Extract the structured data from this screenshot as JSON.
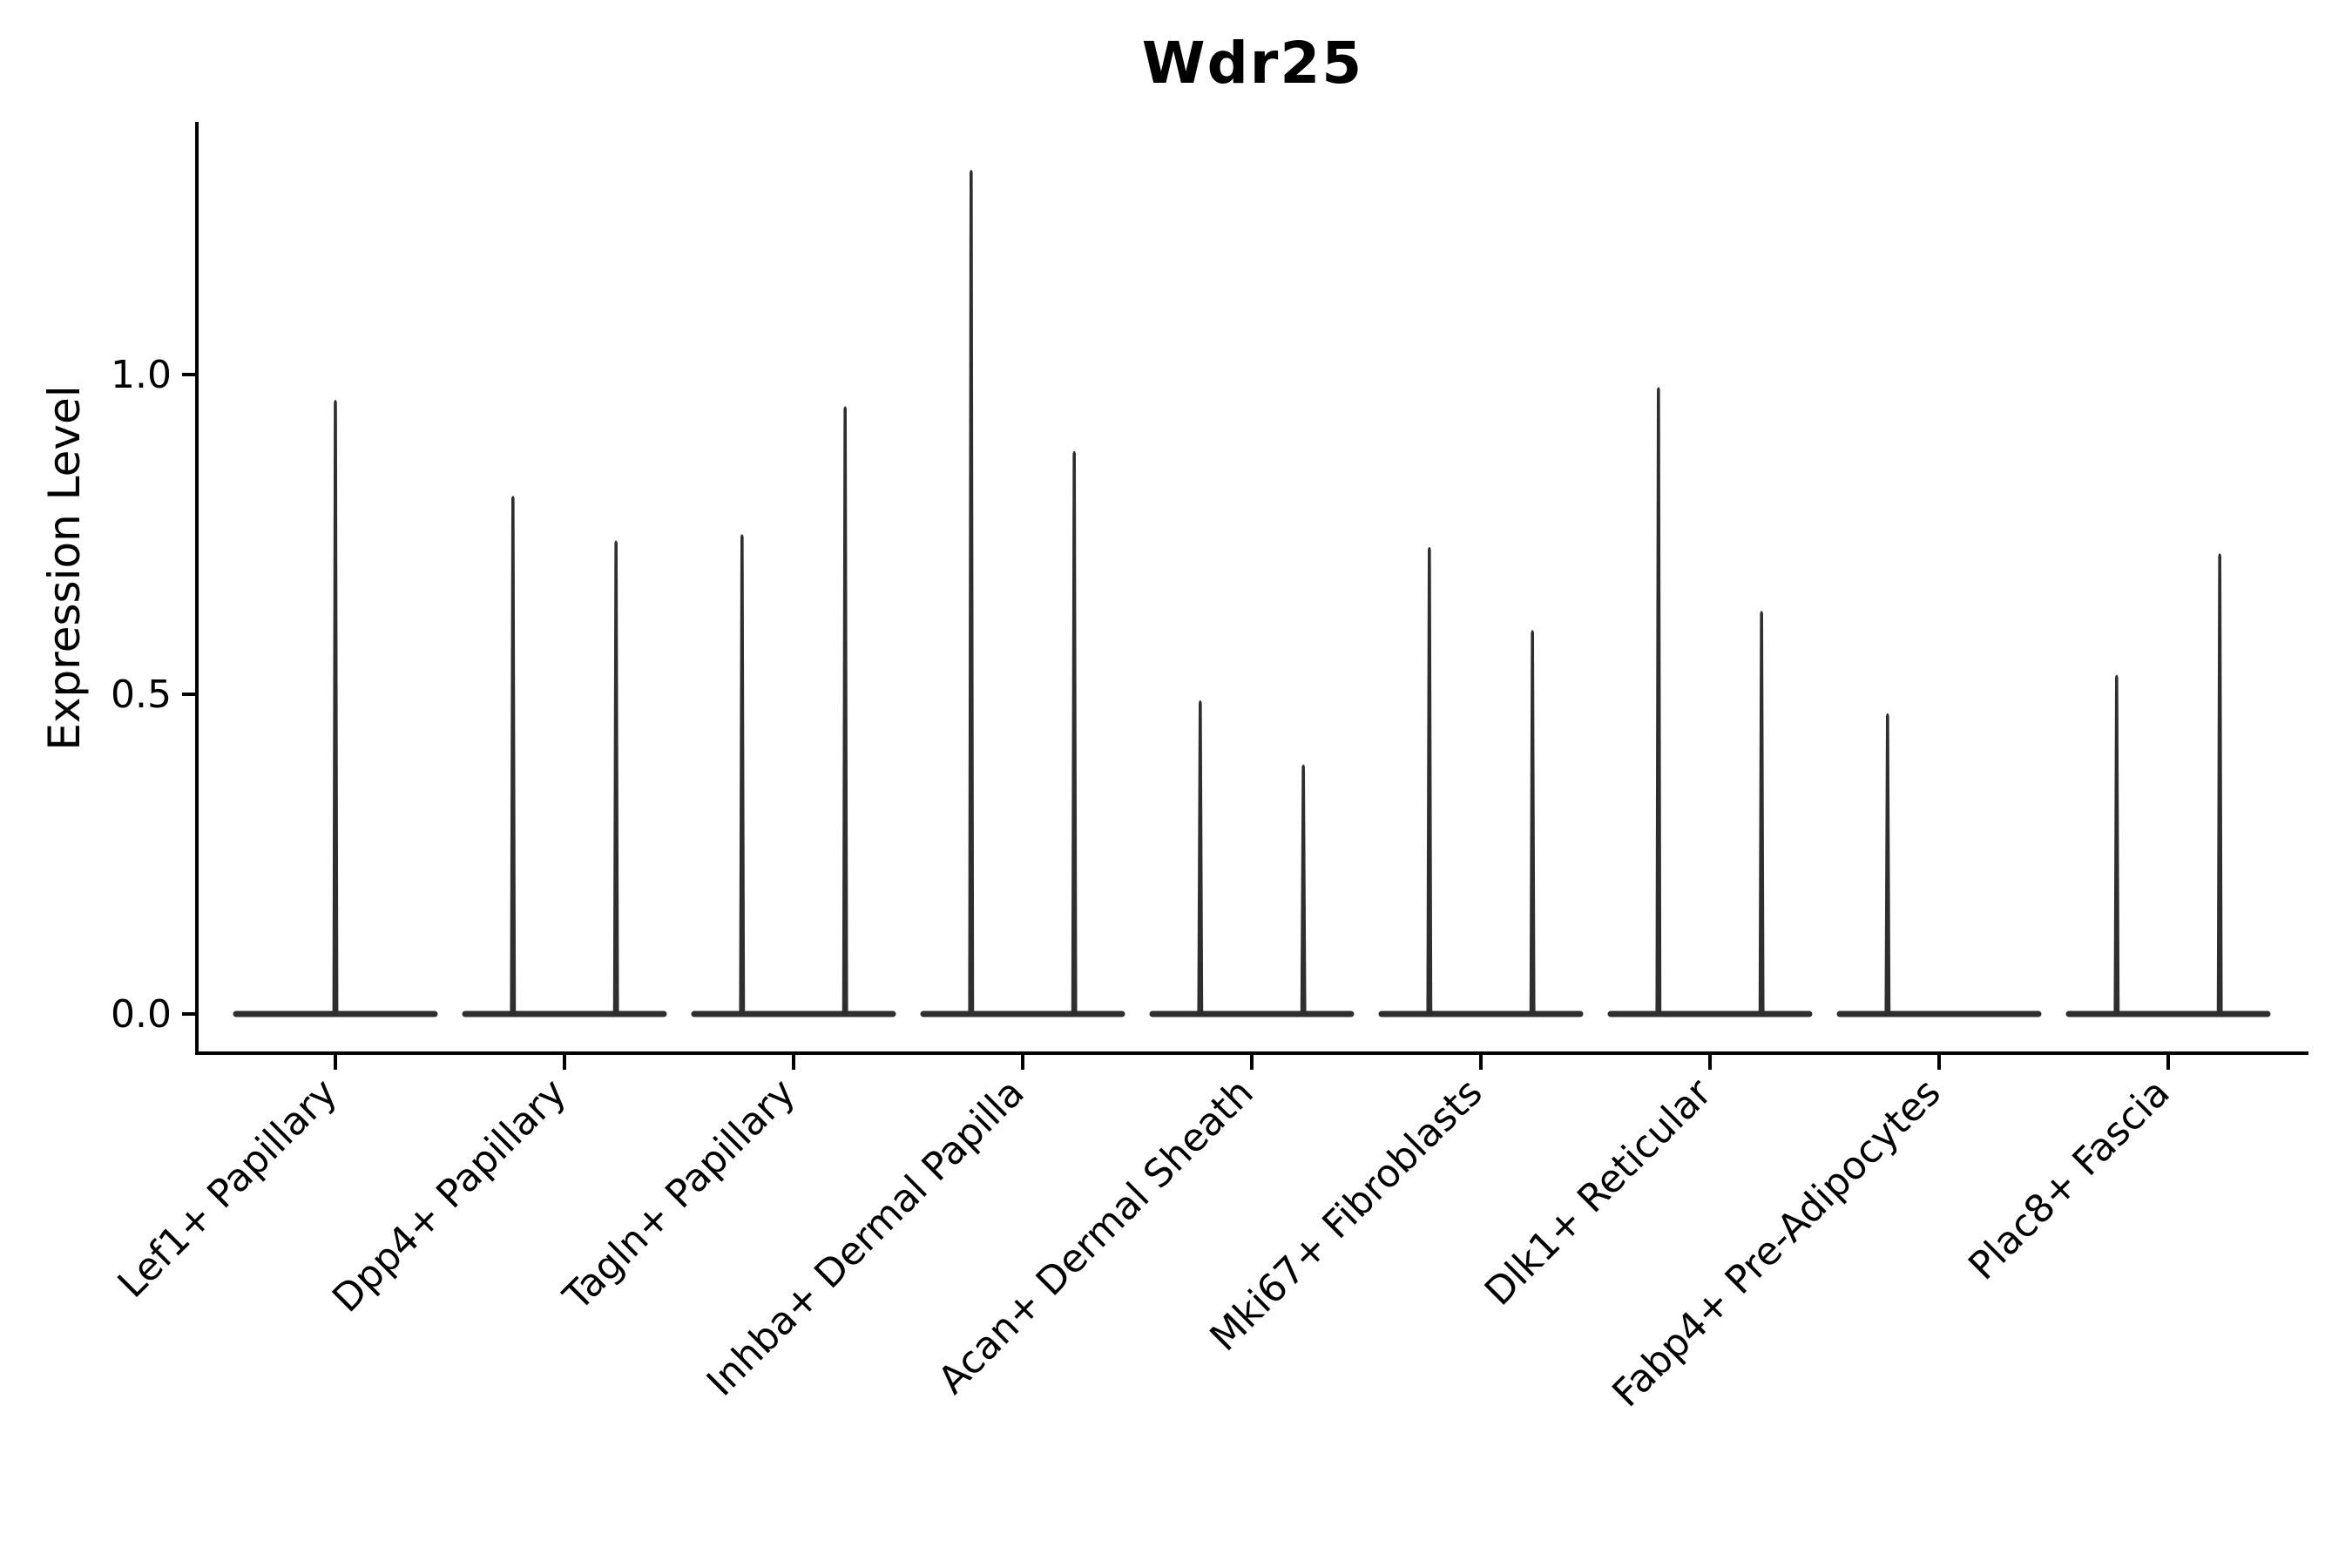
{
  "chart_data": {
    "type": "violin",
    "title": "Wdr25",
    "ylabel": "Expression Level",
    "xlabel": "",
    "yticks": [
      "0.0",
      "0.5",
      "1.0"
    ],
    "ytick_values": [
      0.0,
      0.5,
      1.0
    ],
    "ylim": [
      0,
      1.4
    ],
    "grid": false,
    "legend": null,
    "categories": [
      "Lef1+ Papillary",
      "Dpp4+ Papillary",
      "Tagln+ Papillary",
      "Inhba+ Dermal Papilla",
      "Acan+ Dermal Sheath",
      "Mki67+ Fibroblasts",
      "Dlk1+ Reticular",
      "Fabp4+ Pre-Adipocytes",
      "Plac8+ Fascia"
    ],
    "description": "Violin plot of Wdr25 expression; each violin collapses to a flat band at 0 with a thin spike up to its maximum expression value. Categories with two dodged violins have spikes at left/right slots.",
    "violins": [
      {
        "category": "Lef1+ Papillary",
        "slots": [
          {
            "group": "single",
            "offset": 0,
            "max": 0.96
          }
        ]
      },
      {
        "category": "Dpp4+ Papillary",
        "slots": [
          {
            "group": "left",
            "offset": -0.225,
            "max": 0.81
          },
          {
            "group": "right",
            "offset": 0.225,
            "max": 0.74
          }
        ]
      },
      {
        "category": "Tagln+ Papillary",
        "slots": [
          {
            "group": "left",
            "offset": -0.225,
            "max": 0.75
          },
          {
            "group": "right",
            "offset": 0.225,
            "max": 0.95
          }
        ]
      },
      {
        "category": "Inhba+ Dermal Papilla",
        "slots": [
          {
            "group": "left",
            "offset": -0.225,
            "max": 1.32
          },
          {
            "group": "right",
            "offset": 0.225,
            "max": 0.88
          }
        ]
      },
      {
        "category": "Acan+ Dermal Sheath",
        "slots": [
          {
            "group": "left",
            "offset": -0.225,
            "max": 0.49
          },
          {
            "group": "right",
            "offset": 0.225,
            "max": 0.39
          }
        ]
      },
      {
        "category": "Mki67+ Fibroblasts",
        "slots": [
          {
            "group": "left",
            "offset": -0.225,
            "max": 0.73
          },
          {
            "group": "right",
            "offset": 0.225,
            "max": 0.6
          }
        ]
      },
      {
        "category": "Dlk1+ Reticular",
        "slots": [
          {
            "group": "left",
            "offset": -0.225,
            "max": 0.98
          },
          {
            "group": "right",
            "offset": 0.225,
            "max": 0.63
          }
        ]
      },
      {
        "category": "Fabp4+ Pre-Adipocytes",
        "slots": [
          {
            "group": "left",
            "offset": -0.225,
            "max": 0.47
          },
          {
            "group": "right",
            "offset": 0.225,
            "max": 0.0
          }
        ]
      },
      {
        "category": "Plac8+ Fascia",
        "slots": [
          {
            "group": "left",
            "offset": -0.225,
            "max": 0.53
          },
          {
            "group": "right",
            "offset": 0.225,
            "max": 0.72
          }
        ]
      }
    ],
    "colors": {
      "violin": "#2f2f2f",
      "axis": "#000000",
      "text": "#000000",
      "background": "#ffffff"
    }
  }
}
